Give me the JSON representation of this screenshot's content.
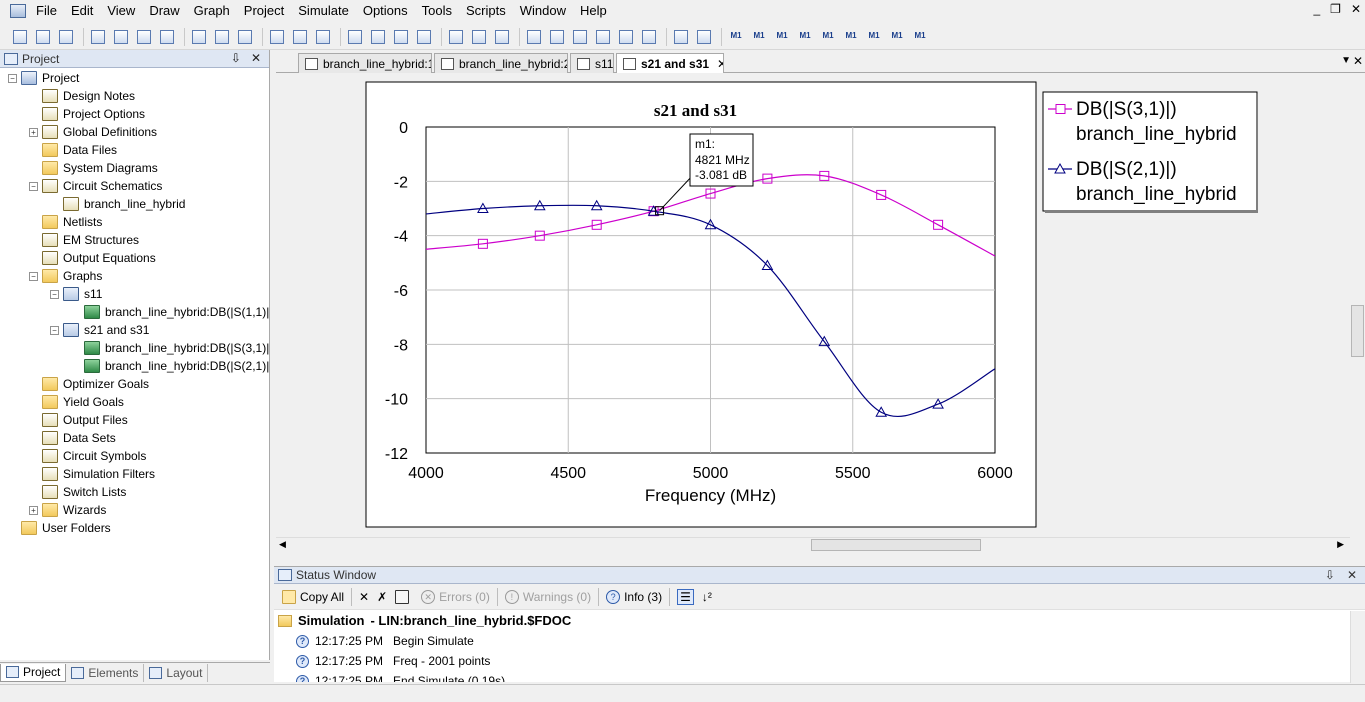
{
  "menubar": {
    "items": [
      "File",
      "Edit",
      "View",
      "Draw",
      "Graph",
      "Project",
      "Simulate",
      "Options",
      "Tools",
      "Scripts",
      "Window",
      "Help"
    ],
    "window_controls": [
      "_",
      "❐",
      "✕"
    ]
  },
  "toolbar": {
    "buttons": [
      "new-icon",
      "open-icon",
      "save-icon",
      "cut-icon",
      "copy-icon",
      "paste-icon",
      "delete-icon",
      "undo-icon",
      "redo-icon",
      "refresh-icon",
      "zoom-in-icon",
      "zoom-out-icon",
      "zoom-fit-icon",
      "add-schematic-icon",
      "add-element-icon",
      "add-port-icon",
      "add-graph-icon",
      "simulate-icon",
      "tune-icon",
      "tune-tool-icon",
      "add-measurement-icon",
      "add-marker-icon",
      "marker-icon",
      "marker-search-icon",
      "marker-left-icon",
      "marker-right-icon",
      "print-icon",
      "text-icon"
    ],
    "marker_labels": [
      "M1",
      "M1",
      "M1",
      "M1",
      "M1",
      "M1",
      "M1",
      "M1",
      "M1"
    ],
    "marker_sub": [
      "MAX",
      "MIN",
      "REF"
    ]
  },
  "project_panel": {
    "title": "Project",
    "header_buttons": [
      "⇩",
      "✕"
    ],
    "tree": [
      {
        "label": "Project",
        "level": 0,
        "expander": "-",
        "icon": "proj"
      },
      {
        "label": "Design Notes",
        "level": 1,
        "expander": "",
        "icon": "schem"
      },
      {
        "label": "Project Options",
        "level": 1,
        "expander": "",
        "icon": "schem"
      },
      {
        "label": "Global Definitions",
        "level": 1,
        "expander": "+",
        "icon": "schem"
      },
      {
        "label": "Data Files",
        "level": 1,
        "expander": "",
        "icon": "folder"
      },
      {
        "label": "System Diagrams",
        "level": 1,
        "expander": "",
        "icon": "folder"
      },
      {
        "label": "Circuit Schematics",
        "level": 1,
        "expander": "-",
        "icon": "schem"
      },
      {
        "label": "branch_line_hybrid",
        "level": 2,
        "expander": "",
        "icon": "schem"
      },
      {
        "label": "Netlists",
        "level": 1,
        "expander": "",
        "icon": "folder"
      },
      {
        "label": "EM Structures",
        "level": 1,
        "expander": "",
        "icon": "schem"
      },
      {
        "label": "Output Equations",
        "level": 1,
        "expander": "",
        "icon": "schem"
      },
      {
        "label": "Graphs",
        "level": 1,
        "expander": "-",
        "icon": "folder"
      },
      {
        "label": "s11",
        "level": 2,
        "expander": "-",
        "icon": "graph"
      },
      {
        "label": "branch_line_hybrid:DB(|S(1,1)|",
        "level": 3,
        "expander": "",
        "icon": "trace"
      },
      {
        "label": "s21 and s31",
        "level": 2,
        "expander": "-",
        "icon": "graph"
      },
      {
        "label": "branch_line_hybrid:DB(|S(3,1)|",
        "level": 3,
        "expander": "",
        "icon": "trace"
      },
      {
        "label": "branch_line_hybrid:DB(|S(2,1)|",
        "level": 3,
        "expander": "",
        "icon": "trace"
      },
      {
        "label": "Optimizer Goals",
        "level": 1,
        "expander": "",
        "icon": "folder"
      },
      {
        "label": "Yield Goals",
        "level": 1,
        "expander": "",
        "icon": "folder"
      },
      {
        "label": "Output Files",
        "level": 1,
        "expander": "",
        "icon": "schem"
      },
      {
        "label": "Data Sets",
        "level": 1,
        "expander": "",
        "icon": "schem"
      },
      {
        "label": "Circuit Symbols",
        "level": 1,
        "expander": "",
        "icon": "schem"
      },
      {
        "label": "Simulation Filters",
        "level": 1,
        "expander": "",
        "icon": "schem"
      },
      {
        "label": "Switch Lists",
        "level": 1,
        "expander": "",
        "icon": "schem"
      },
      {
        "label": "Wizards",
        "level": 1,
        "expander": "+",
        "icon": "folder"
      },
      {
        "label": "User Folders",
        "level": 0,
        "expander": "",
        "icon": "folder"
      }
    ],
    "bottom_tabs": [
      "Project",
      "Elements",
      "Layout"
    ]
  },
  "doc_tabs": [
    {
      "label": "branch_line_hybrid:1",
      "active": false
    },
    {
      "label": "branch_line_hybrid:2",
      "active": false
    },
    {
      "label": "s11",
      "active": false
    },
    {
      "label": "s21 and s31",
      "active": true
    }
  ],
  "chart_data": {
    "type": "line",
    "title": "s21 and s31",
    "xlabel": "Frequency (MHz)",
    "ylabel": "",
    "xlim": [
      4000,
      6000
    ],
    "ylim": [
      -12,
      0
    ],
    "xticks": [
      4000,
      4500,
      5000,
      5500,
      6000
    ],
    "yticks": [
      0,
      -2,
      -4,
      -6,
      -8,
      -10,
      -12
    ],
    "grid": true,
    "legend_position": "right-outside",
    "series": [
      {
        "name": "DB(|S(3,1)|)",
        "source": "branch_line_hybrid",
        "color": "#cc00cc",
        "marker": "square",
        "x": [
          4000,
          4200,
          4400,
          4600,
          4800,
          5000,
          5200,
          5400,
          5600,
          5800,
          6000
        ],
        "y": [
          -4.5,
          -4.3,
          -4.0,
          -3.6,
          -3.1,
          -2.45,
          -1.9,
          -1.8,
          -2.5,
          -3.6,
          -4.75
        ]
      },
      {
        "name": "DB(|S(2,1)|)",
        "source": "branch_line_hybrid",
        "color": "#000080",
        "marker": "triangle",
        "x": [
          4000,
          4200,
          4400,
          4600,
          4800,
          5000,
          5200,
          5400,
          5600,
          5800,
          6000
        ],
        "y": [
          -3.2,
          -3.0,
          -2.9,
          -2.9,
          -3.1,
          -3.6,
          -5.1,
          -7.9,
          -10.5,
          -10.2,
          -8.9
        ]
      }
    ],
    "marker_box": {
      "name": "m1:",
      "freq": "4821 MHz",
      "value": "-3.081 dB",
      "x": 4821,
      "y": -3.081
    }
  },
  "status_window": {
    "title": "Status Window",
    "header_buttons": [
      "⇩",
      "✕"
    ],
    "toolbar": {
      "copy_all": "Copy All",
      "errors": "Errors (0)",
      "warnings": "Warnings (0)",
      "info": "Info (3)"
    },
    "log_head": {
      "category": "Simulation",
      "detail": " - LIN:branch_line_hybrid.$FDOC"
    },
    "log": [
      {
        "time": "12:17:25 PM",
        "message": "Begin Simulate"
      },
      {
        "time": "12:17:25 PM",
        "message": "Freq - 2001 points"
      },
      {
        "time": "12:17:25 PM",
        "message": "End Simulate (0.19s)"
      }
    ]
  }
}
